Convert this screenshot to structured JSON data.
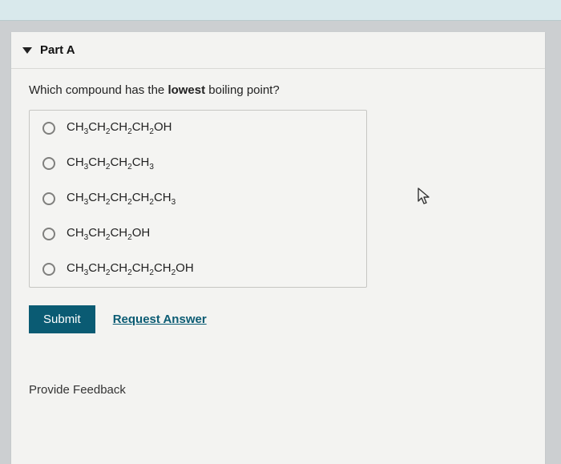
{
  "part": {
    "title": "Part A"
  },
  "question": {
    "pre": "Which compound has the ",
    "emph": "lowest",
    "post": " boiling point?"
  },
  "options": [
    {
      "formula_html": "CH<sub>3</sub>CH<sub>2</sub>CH<sub>2</sub>CH<sub>2</sub>OH"
    },
    {
      "formula_html": "CH<sub>3</sub>CH<sub>2</sub>CH<sub>2</sub>CH<sub>3</sub>"
    },
    {
      "formula_html": "CH<sub>3</sub>CH<sub>2</sub>CH<sub>2</sub>CH<sub>2</sub>CH<sub>3</sub>"
    },
    {
      "formula_html": "CH<sub>3</sub>CH<sub>2</sub>CH<sub>2</sub>OH"
    },
    {
      "formula_html": "CH<sub>3</sub>CH<sub>2</sub>CH<sub>2</sub>CH<sub>2</sub>CH<sub>2</sub>OH"
    }
  ],
  "actions": {
    "submit": "Submit",
    "request": "Request Answer"
  },
  "footer": {
    "feedback": "Provide Feedback"
  },
  "colors": {
    "page_bg": "#f3f3f1",
    "outer_bg": "#cccfd1",
    "topbar_bg": "#d9e9ec",
    "accent": "#0a5b73",
    "border": "#c6c6c3"
  }
}
